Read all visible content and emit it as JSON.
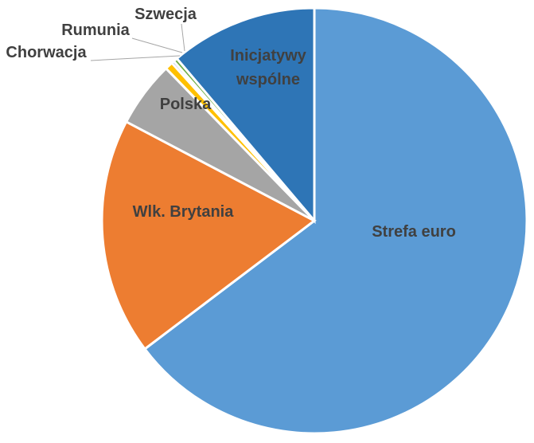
{
  "chart_data": {
    "type": "pie",
    "title": "",
    "slices": [
      {
        "label": "Strefa euro",
        "value": 64.7,
        "color": "#5b9bd5"
      },
      {
        "label": "Wlk. Brytania",
        "value": 18.0,
        "color": "#ed7d31"
      },
      {
        "label": "Polska",
        "value": 5.0,
        "color": "#a5a5a5"
      },
      {
        "label": "Chorwacja",
        "value": 0.6,
        "color": "#ffc000"
      },
      {
        "label": "Rumunia",
        "value": 0.2,
        "color": "#4472c4"
      },
      {
        "label": "Szwecja",
        "value": 0.3,
        "color": "#70ad47"
      },
      {
        "label": "Inicjatywy wspólne",
        "value": 11.2,
        "color": "#2e75b6"
      }
    ],
    "legend": "none"
  }
}
